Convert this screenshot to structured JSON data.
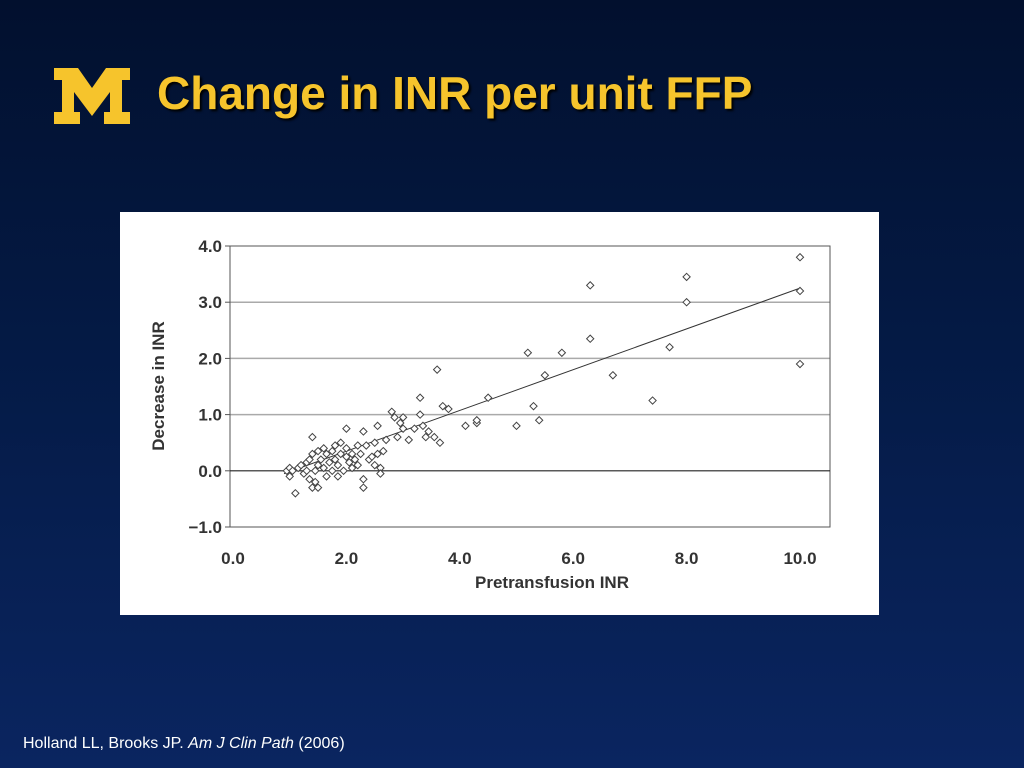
{
  "slide": {
    "title": "Change in INR per unit FFP",
    "logo_letter": "M",
    "colors": {
      "background": "#041a45",
      "title": "#f6c42c",
      "logo": "#f6c42c",
      "text": "#ffffff"
    }
  },
  "citation": {
    "authors": "Holland LL, Brooks JP.",
    "journal": "Am J Clin Path",
    "year": "(2006)"
  },
  "chart_data": {
    "type": "scatter",
    "title": "",
    "xlabel": "Pretransfusion INR",
    "ylabel": "Decrease in INR",
    "xlim": [
      0,
      10.6
    ],
    "ylim": [
      -1,
      4
    ],
    "xticks": [
      "0.0",
      "2.0",
      "4.0",
      "6.0",
      "8.0",
      "10.0"
    ],
    "xtick_values": [
      0,
      2,
      4,
      6,
      8,
      10
    ],
    "yticks": [
      "4.0",
      "3.0",
      "2.0",
      "1.0",
      "0.0",
      "−1.0"
    ],
    "ytick_values": [
      4,
      3,
      2,
      1,
      0,
      -1
    ],
    "grid": "horizontal",
    "marker": "open-diamond",
    "trendline": {
      "x": [
        0.9,
        10.0
      ],
      "y": [
        -0.05,
        3.25
      ]
    },
    "points": [
      [
        0.95,
        0.0
      ],
      [
        1.0,
        0.05
      ],
      [
        1.0,
        -0.1
      ],
      [
        1.05,
        0.0
      ],
      [
        1.1,
        -0.4
      ],
      [
        1.15,
        0.05
      ],
      [
        1.2,
        0.1
      ],
      [
        1.25,
        -0.05
      ],
      [
        1.3,
        0.15
      ],
      [
        1.3,
        0.0
      ],
      [
        1.35,
        -0.15
      ],
      [
        1.35,
        0.2
      ],
      [
        1.4,
        0.6
      ],
      [
        1.4,
        0.3
      ],
      [
        1.4,
        -0.3
      ],
      [
        1.45,
        0.0
      ],
      [
        1.45,
        -0.2
      ],
      [
        1.5,
        0.1
      ],
      [
        1.5,
        0.35
      ],
      [
        1.5,
        -0.3
      ],
      [
        1.55,
        0.2
      ],
      [
        1.6,
        0.05
      ],
      [
        1.6,
        0.4
      ],
      [
        1.65,
        0.3
      ],
      [
        1.65,
        -0.1
      ],
      [
        1.7,
        0.15
      ],
      [
        1.75,
        0.35
      ],
      [
        1.75,
        0.0
      ],
      [
        1.8,
        0.45
      ],
      [
        1.8,
        0.2
      ],
      [
        1.85,
        0.1
      ],
      [
        1.85,
        -0.1
      ],
      [
        1.9,
        0.3
      ],
      [
        1.9,
        0.5
      ],
      [
        1.95,
        0.0
      ],
      [
        2.0,
        0.25
      ],
      [
        2.0,
        0.4
      ],
      [
        2.0,
        0.75
      ],
      [
        2.05,
        0.15
      ],
      [
        2.1,
        0.3
      ],
      [
        2.1,
        0.05
      ],
      [
        2.15,
        0.2
      ],
      [
        2.2,
        0.45
      ],
      [
        2.2,
        0.1
      ],
      [
        2.25,
        0.3
      ],
      [
        2.3,
        -0.15
      ],
      [
        2.3,
        -0.3
      ],
      [
        2.3,
        0.7
      ],
      [
        2.35,
        0.45
      ],
      [
        2.4,
        0.2
      ],
      [
        2.45,
        0.25
      ],
      [
        2.5,
        0.5
      ],
      [
        2.5,
        0.1
      ],
      [
        2.55,
        0.3
      ],
      [
        2.55,
        0.8
      ],
      [
        2.6,
        0.05
      ],
      [
        2.6,
        -0.05
      ],
      [
        2.65,
        0.35
      ],
      [
        2.7,
        0.55
      ],
      [
        2.8,
        1.05
      ],
      [
        2.85,
        0.95
      ],
      [
        2.9,
        0.6
      ],
      [
        2.95,
        0.85
      ],
      [
        3.0,
        0.95
      ],
      [
        3.0,
        0.75
      ],
      [
        3.1,
        0.55
      ],
      [
        3.2,
        0.75
      ],
      [
        3.3,
        1.3
      ],
      [
        3.3,
        1.0
      ],
      [
        3.35,
        0.8
      ],
      [
        3.4,
        0.6
      ],
      [
        3.45,
        0.7
      ],
      [
        3.55,
        0.6
      ],
      [
        3.6,
        1.8
      ],
      [
        3.65,
        0.5
      ],
      [
        3.7,
        1.15
      ],
      [
        3.8,
        1.1
      ],
      [
        4.1,
        0.8
      ],
      [
        4.3,
        0.85
      ],
      [
        4.3,
        0.9
      ],
      [
        4.5,
        1.3
      ],
      [
        5.0,
        0.8
      ],
      [
        5.2,
        2.1
      ],
      [
        5.3,
        1.15
      ],
      [
        5.4,
        0.9
      ],
      [
        5.5,
        1.7
      ],
      [
        5.8,
        2.1
      ],
      [
        6.3,
        3.3
      ],
      [
        6.3,
        2.35
      ],
      [
        6.7,
        1.7
      ],
      [
        7.4,
        1.25
      ],
      [
        7.7,
        2.2
      ],
      [
        8.0,
        3.45
      ],
      [
        8.0,
        3.0
      ],
      [
        10.0,
        3.8
      ],
      [
        10.0,
        3.2
      ],
      [
        10.0,
        1.9
      ]
    ]
  }
}
